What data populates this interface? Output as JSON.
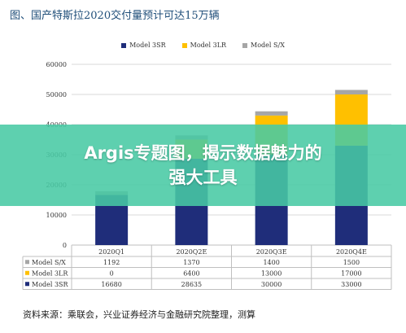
{
  "figure_title": "图、国产特斯拉2020交付量预计可达15万辆",
  "source_note": "资料来源：乘联会，兴业证券经济与金融研究院整理，测算",
  "overlay_banner": "Argis专题图，揭示数据魅力的强大工具",
  "colors": {
    "model_3sr": "#1f2d7a",
    "model_3lr": "#ffc000",
    "model_sx": "#a6a6a6",
    "model_y_layer": "#2e8b97",
    "banner": "#48c9a4"
  },
  "chart_data": {
    "type": "bar",
    "stacked": true,
    "categories": [
      "2020Q1",
      "2020Q2E",
      "2020Q3E",
      "2020Q4E"
    ],
    "series": [
      {
        "name": "Model 3SR",
        "values": [
          16680,
          28635,
          30000,
          33000
        ],
        "color": "#1f2d7a"
      },
      {
        "name": "Model 3LR",
        "values": [
          0,
          6400,
          13000,
          17000
        ],
        "color": "#ffc000"
      },
      {
        "name": "Model S/X",
        "values": [
          1192,
          1370,
          1400,
          1500
        ],
        "color": "#a6a6a6"
      }
    ],
    "ylim": [
      0,
      60000
    ],
    "yticks": [
      "0",
      "10000",
      "20000",
      "30000",
      "40000",
      "50000",
      "60000"
    ],
    "grid": true,
    "legend_position": "top",
    "data_table": true,
    "title": "",
    "xlabel": "",
    "ylabel": ""
  }
}
